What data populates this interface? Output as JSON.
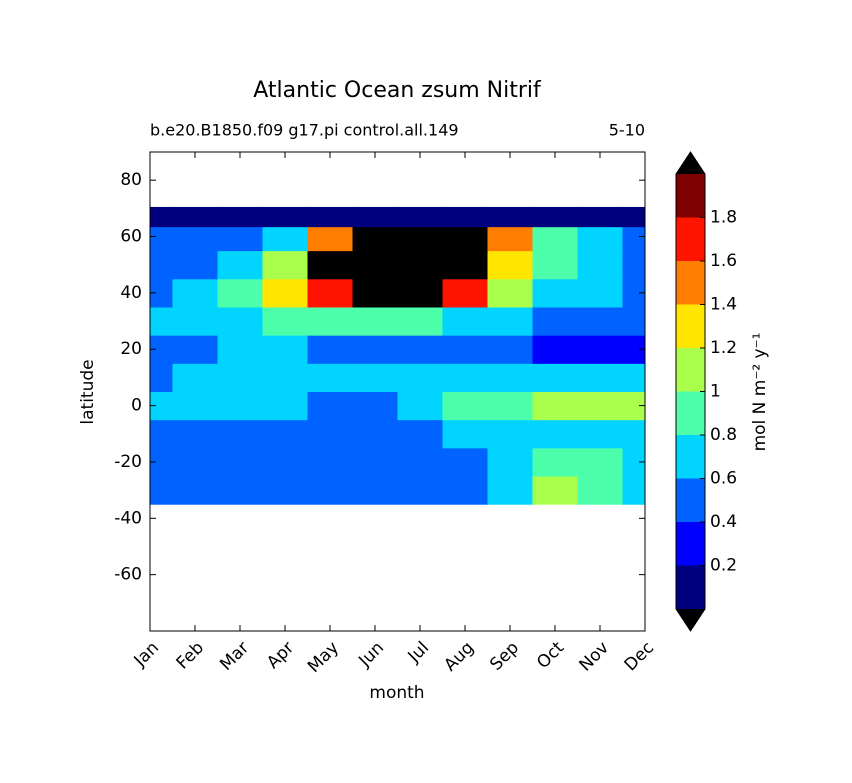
{
  "chart_data": {
    "type": "contour",
    "title": "Atlantic Ocean zsum Nitrif",
    "subtitle_left": "b.e20.B1850.f09 g17.pi control.all.149",
    "subtitle_right": "5-10",
    "xlabel": "month",
    "ylabel": "latitude",
    "categories": [
      "Jan",
      "Feb",
      "Mar",
      "Apr",
      "May",
      "Jun",
      "Jul",
      "Aug",
      "Sep",
      "Oct",
      "Nov",
      "Dec"
    ],
    "y": [
      -30,
      -20,
      -10,
      0,
      10,
      20,
      30,
      40,
      50,
      60,
      67
    ],
    "z": [
      [
        0.5,
        0.5,
        0.5,
        0.5,
        0.5,
        0.5,
        0.5,
        0.5,
        0.7,
        1.1,
        0.9,
        0.7
      ],
      [
        0.5,
        0.5,
        0.5,
        0.5,
        0.5,
        0.5,
        0.5,
        0.5,
        0.7,
        0.9,
        0.9,
        0.7
      ],
      [
        0.5,
        0.5,
        0.5,
        0.5,
        0.5,
        0.5,
        0.5,
        0.7,
        0.7,
        0.7,
        0.7,
        0.7
      ],
      [
        0.7,
        0.7,
        0.7,
        0.7,
        0.5,
        0.5,
        0.7,
        0.9,
        0.9,
        1.1,
        1.1,
        1.1
      ],
      [
        0.5,
        0.7,
        0.7,
        0.7,
        0.7,
        0.7,
        0.7,
        0.7,
        0.7,
        0.7,
        0.7,
        0.7
      ],
      [
        0.5,
        0.5,
        0.7,
        0.7,
        0.5,
        0.5,
        0.5,
        0.5,
        0.5,
        0.3,
        0.3,
        0.3
      ],
      [
        0.7,
        0.7,
        0.7,
        0.9,
        0.9,
        0.9,
        0.9,
        0.7,
        0.7,
        0.5,
        0.5,
        0.5
      ],
      [
        0.5,
        0.7,
        0.9,
        1.3,
        1.7,
        2.1,
        2.1,
        1.7,
        1.1,
        0.7,
        0.7,
        0.5
      ],
      [
        0.5,
        0.5,
        0.7,
        1.1,
        2.1,
        2.1,
        2.1,
        2.1,
        1.3,
        0.9,
        0.7,
        0.5
      ],
      [
        0.5,
        0.5,
        0.5,
        0.7,
        1.5,
        2.1,
        2.1,
        2.1,
        1.5,
        0.9,
        0.7,
        0.5
      ],
      [
        0.1,
        0.1,
        0.1,
        0.1,
        0.1,
        0.1,
        0.1,
        0.1,
        0.1,
        0.1,
        0.1,
        0.1
      ]
    ],
    "ylim": [
      -80,
      90
    ],
    "yticks": [
      -60,
      -40,
      -20,
      0,
      20,
      40,
      60,
      80
    ],
    "levels": [
      0,
      0.2,
      0.4,
      0.6,
      0.8,
      1.0,
      1.2,
      1.4,
      1.6,
      1.8,
      2.0
    ],
    "colors": [
      "#00007f",
      "#0000ff",
      "#0063ff",
      "#00d4ff",
      "#4dffaa",
      "#aaff4d",
      "#ffe500",
      "#ff7d00",
      "#ff1400",
      "#7f0000"
    ],
    "under_color": "#000000",
    "over_color": "#000000",
    "colorbar_label": "mol N m⁻² y⁻¹",
    "colorbar_ticks": [
      0.2,
      0.4,
      0.6,
      0.8,
      1,
      1.2,
      1.4,
      1.6,
      1.8
    ]
  }
}
